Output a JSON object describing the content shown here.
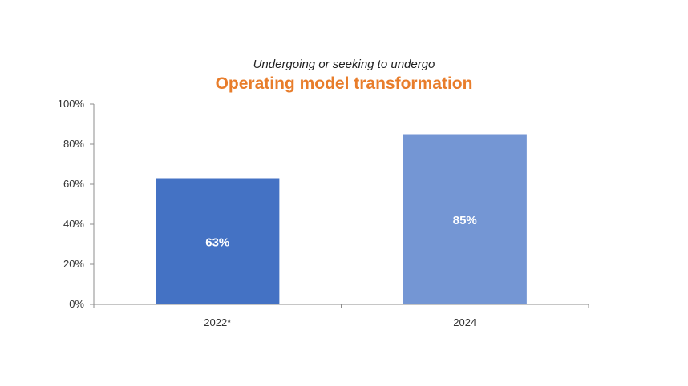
{
  "chart_data": {
    "type": "bar",
    "subtitle": "Undergoing or seeking to undergo",
    "title": "Operating model transformation",
    "categories": [
      "2022*",
      "2024"
    ],
    "values": [
      63,
      85
    ],
    "data_labels": [
      "63%",
      "85%"
    ],
    "bar_colors": [
      "#4472C4",
      "#7496D4"
    ],
    "title_color": "#E87D2B",
    "ylim": [
      0,
      100
    ],
    "yticks": [
      0,
      20,
      40,
      60,
      80,
      100
    ],
    "ytick_labels": [
      "0%",
      "20%",
      "40%",
      "60%",
      "80%",
      "100%"
    ],
    "grid": false,
    "legend": "none"
  }
}
